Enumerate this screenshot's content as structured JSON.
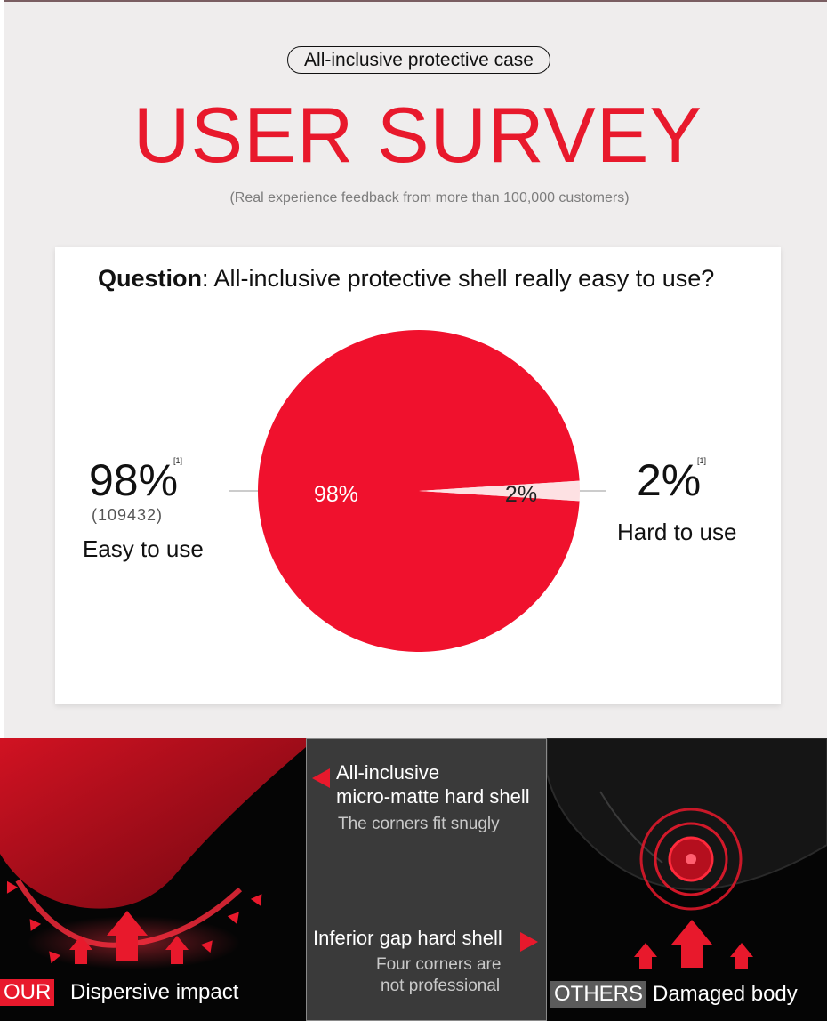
{
  "header": {
    "pill_text": "All-inclusive protective case",
    "headline": "USER SURVEY",
    "subline": "(Real experience feedback from more than 100,000 customers)"
  },
  "survey": {
    "question_bold": "Question",
    "question_rest": ": All-inclusive protective shell really easy to use?",
    "left_percent": "98%",
    "left_note": "[1]",
    "left_count": "(109432)",
    "left_label": "Easy to use",
    "right_percent": "2%",
    "right_note": "[1]",
    "right_label": "Hard to use"
  },
  "chart_data": {
    "type": "pie",
    "slices": [
      {
        "label": "Easy to use",
        "value": 98,
        "display": "98%",
        "color": "#f0112d"
      },
      {
        "label": "Hard to use",
        "value": 2,
        "display": "2%",
        "color": "#fde1e3"
      }
    ]
  },
  "comparison": {
    "ours_tag": "OUR",
    "ours_caption": "Dispersive impact",
    "middle_top_title_1": "All-inclusive",
    "middle_top_title_2": "micro-matte hard shell",
    "middle_top_sub": "The corners fit snugly",
    "middle_bottom_title": "Inferior gap hard shell",
    "middle_bottom_sub_1": "Four corners are",
    "middle_bottom_sub_2": "not professional",
    "others_tag": "OTHERS",
    "others_caption": "Damaged body"
  },
  "colors": {
    "accent": "#e8192c",
    "gray_tag": "#5b5b5b",
    "background": "#efeded"
  }
}
